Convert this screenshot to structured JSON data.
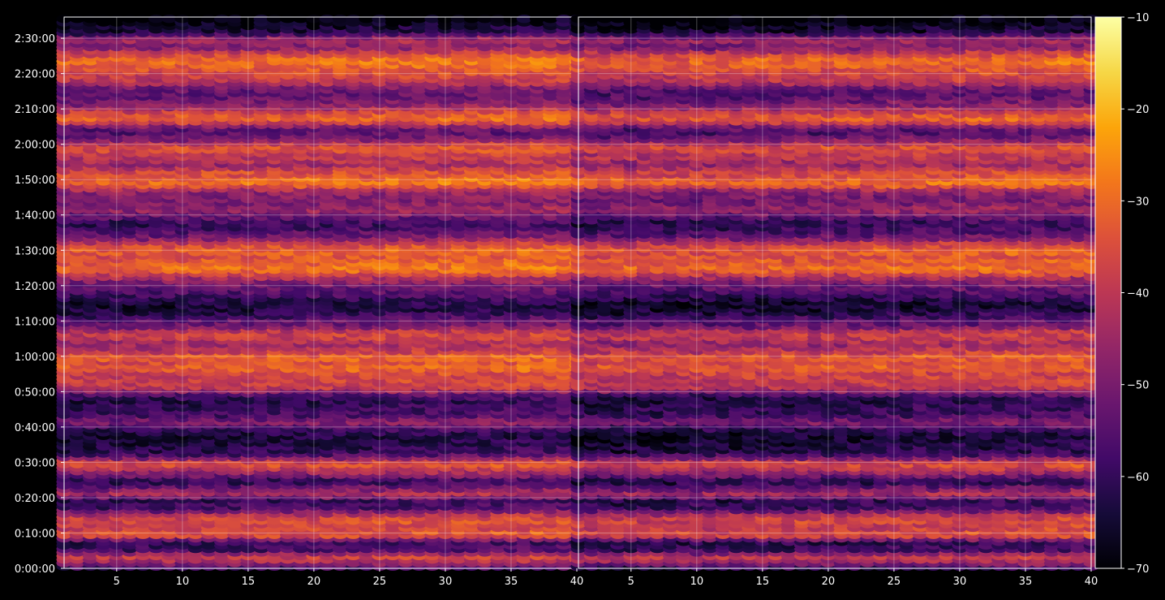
{
  "chart_data": {
    "type": "heatmap",
    "title": "",
    "xlabel": "",
    "ylabel": "",
    "panels": [
      {
        "xlim": [
          1,
          40
        ],
        "x_ticks": [
          5,
          10,
          15,
          20,
          25,
          30,
          35,
          40
        ],
        "tick_labels": [
          "5",
          "10",
          "15",
          "20",
          "25",
          "30",
          "35",
          "40"
        ]
      },
      {
        "xlim": [
          1,
          40
        ],
        "x_ticks": [
          5,
          10,
          15,
          20,
          25,
          30,
          35,
          40
        ],
        "tick_labels": [
          "5",
          "10",
          "15",
          "20",
          "25",
          "30",
          "35",
          "40"
        ]
      }
    ],
    "y_axis": {
      "unit": "seconds",
      "ylim": [
        0,
        9360
      ],
      "ticks": [
        0,
        600,
        1200,
        1800,
        2400,
        3000,
        3600,
        4200,
        4800,
        5400,
        6000,
        6600,
        7200,
        7800,
        8400,
        9000
      ],
      "tick_labels": [
        "0:00:00",
        "0:10:00",
        "0:20:00",
        "0:30:00",
        "0:40:00",
        "0:50:00",
        "1:00:00",
        "1:10:00",
        "1:20:00",
        "1:30:00",
        "1:40:00",
        "1:50:00",
        "2:00:00",
        "2:10:00",
        "2:20:00",
        "2:30:00"
      ]
    },
    "colorbar": {
      "colormap": "inferno",
      "range": [
        -70,
        -10
      ],
      "ticks": [
        -70,
        -60,
        -50,
        -40,
        -30,
        -20,
        -10
      ],
      "tick_labels": [
        "−70",
        "−60",
        "−50",
        "−40",
        "−30",
        "−20",
        "−10"
      ]
    },
    "intensity_profile": {
      "time_s": [
        0,
        120,
        240,
        300,
        480,
        540,
        600,
        660,
        720,
        840,
        960,
        1020,
        1200,
        1260,
        1380,
        1500,
        1560,
        1680,
        1740,
        1800,
        1860,
        1920,
        2010,
        2100,
        2280,
        2400,
        2520,
        2580,
        2700,
        2880,
        3000,
        3060,
        3240,
        3300,
        3420,
        3540,
        3600,
        3660,
        3720,
        3840,
        3960,
        4080,
        4140,
        4200,
        4260,
        4380,
        4500,
        4680,
        4800,
        4920,
        5040,
        5100,
        5220,
        5340,
        5400,
        5520,
        5640,
        5760,
        5880,
        5940,
        6000,
        6120,
        6240,
        6420,
        6540,
        6600,
        6720,
        6780,
        6840,
        6960,
        7080,
        7140,
        7200,
        7320,
        7440,
        7560,
        7620,
        7740,
        7860,
        8040,
        8160,
        8280,
        8400,
        8520,
        8640,
        8760,
        8880,
        9000,
        9120,
        9240,
        9360
      ],
      "level_db": [
        -62,
        -44,
        -36,
        -56,
        -60,
        -40,
        -32,
        -36,
        -38,
        -34,
        -44,
        -56,
        -60,
        -40,
        -50,
        -62,
        -54,
        -42,
        -38,
        -32,
        -42,
        -54,
        -60,
        -62,
        -64,
        -58,
        -46,
        -56,
        -58,
        -62,
        -52,
        -40,
        -36,
        -38,
        -30,
        -36,
        -28,
        -36,
        -40,
        -44,
        -36,
        -42,
        -54,
        -50,
        -56,
        -62,
        -64,
        -56,
        -52,
        -46,
        -34,
        -28,
        -32,
        -34,
        -30,
        -36,
        -50,
        -56,
        -60,
        -56,
        -52,
        -44,
        -50,
        -46,
        -30,
        -28,
        -36,
        -34,
        -46,
        -40,
        -38,
        -32,
        -36,
        -50,
        -56,
        -44,
        -30,
        -34,
        -46,
        -54,
        -52,
        -40,
        -36,
        -32,
        -28,
        -36,
        -50,
        -42,
        -62,
        -66,
        -70
      ]
    }
  }
}
